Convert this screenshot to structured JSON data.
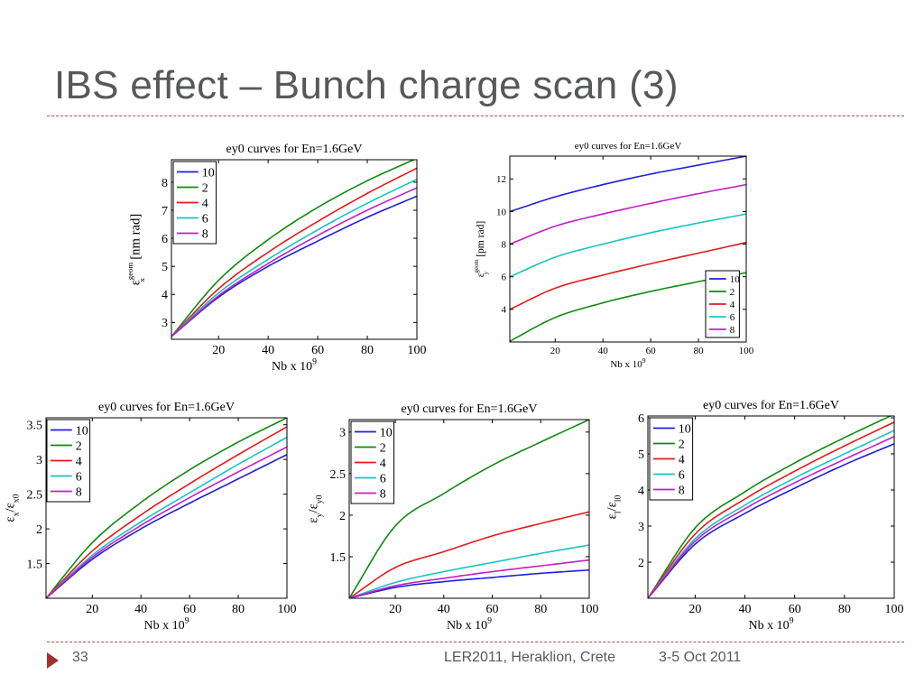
{
  "slide": {
    "title": "IBS effect – Bunch charge scan (3)",
    "page_number": "33",
    "event": "LER2011, Heraklion, Crete",
    "date": "3-5 Oct 2011"
  },
  "colors": {
    "series": [
      "#1f1fd6",
      "#0f8a0f",
      "#e31a1a",
      "#17c4c4",
      "#c21fc2"
    ],
    "accent": "#a3302b",
    "rule": "#b5514d",
    "title_text": "#57585a"
  },
  "chart_data": [
    {
      "type": "line",
      "title": "ey0 curves for En=1.6GeV",
      "xlabel": "Nb x 10",
      "xlabel_sup": "9",
      "ylabel": "ε",
      "ylabel_sub": "x",
      "ylabel_sup": "geom",
      "ylabel_unit": " [nm rad]",
      "xlim": [
        1,
        100
      ],
      "ylim": [
        2.4,
        8.8
      ],
      "xticks": [
        20,
        40,
        60,
        80,
        100
      ],
      "yticks": [
        3,
        4,
        5,
        6,
        7,
        8
      ],
      "grid": false,
      "legend": "top-left",
      "series": [
        {
          "name": "10",
          "x": [
            1,
            20,
            40,
            60,
            80,
            100
          ],
          "values": [
            2.5,
            3.9,
            5.0,
            5.9,
            6.75,
            7.5
          ]
        },
        {
          "name": "2",
          "x": [
            1,
            20,
            40,
            60,
            80,
            100
          ],
          "values": [
            2.5,
            4.5,
            5.95,
            7.1,
            8.05,
            8.85
          ]
        },
        {
          "name": "4",
          "x": [
            1,
            20,
            40,
            60,
            80,
            100
          ],
          "values": [
            2.5,
            4.2,
            5.5,
            6.6,
            7.6,
            8.5
          ]
        },
        {
          "name": "6",
          "x": [
            1,
            20,
            40,
            60,
            80,
            100
          ],
          "values": [
            2.5,
            4.05,
            5.25,
            6.3,
            7.25,
            8.1
          ]
        },
        {
          "name": "8",
          "x": [
            1,
            20,
            40,
            60,
            80,
            100
          ],
          "values": [
            2.5,
            3.95,
            5.1,
            6.1,
            7.0,
            7.8
          ]
        }
      ]
    },
    {
      "type": "line",
      "title": "ey0 curves for En=1.6GeV",
      "xlabel": "Nb x 10",
      "xlabel_sup": "9",
      "ylabel": "ε",
      "ylabel_sub": "y",
      "ylabel_sup": "geom",
      "ylabel_unit": " [pm rad]",
      "xlim": [
        1,
        100
      ],
      "ylim": [
        2,
        13.4
      ],
      "xticks": [
        20,
        40,
        60,
        80,
        100
      ],
      "yticks": [
        4,
        6,
        8,
        10,
        12
      ],
      "grid": false,
      "legend": "bottom-right",
      "series": [
        {
          "name": "10",
          "x": [
            1,
            20,
            40,
            60,
            80,
            100
          ],
          "values": [
            10.0,
            10.9,
            11.65,
            12.3,
            12.85,
            13.4
          ]
        },
        {
          "name": "2",
          "x": [
            1,
            20,
            40,
            60,
            80,
            100
          ],
          "values": [
            2.05,
            3.5,
            4.4,
            5.1,
            5.7,
            6.25
          ]
        },
        {
          "name": "4",
          "x": [
            1,
            20,
            40,
            60,
            80,
            100
          ],
          "values": [
            4.0,
            5.3,
            6.1,
            6.8,
            7.45,
            8.1
          ]
        },
        {
          "name": "6",
          "x": [
            1,
            20,
            40,
            60,
            80,
            100
          ],
          "values": [
            6.0,
            7.2,
            8.0,
            8.7,
            9.3,
            9.85
          ]
        },
        {
          "name": "8",
          "x": [
            1,
            20,
            40,
            60,
            80,
            100
          ],
          "values": [
            8.0,
            9.1,
            9.85,
            10.5,
            11.1,
            11.65
          ]
        }
      ]
    },
    {
      "type": "line",
      "title": "ey0 curves for En=1.6GeV",
      "xlabel": "Nb x 10",
      "xlabel_sup": "9",
      "ylabel": "ε",
      "ylabel_sub": "x",
      "ylabel_mid": "/ε",
      "ylabel_sub2": "x0",
      "xlim": [
        1,
        100
      ],
      "ylim": [
        1,
        3.6
      ],
      "xticks": [
        20,
        40,
        60,
        80,
        100
      ],
      "yticks": [
        1.5,
        2,
        2.5,
        3,
        3.5
      ],
      "ytick_labels": [
        "1.5",
        "2",
        "2.5",
        "3",
        "3.5"
      ],
      "grid": false,
      "legend": "top-left",
      "series": [
        {
          "name": "10",
          "x": [
            1,
            20,
            40,
            60,
            80,
            100
          ],
          "values": [
            1.0,
            1.56,
            2.0,
            2.37,
            2.72,
            3.07
          ]
        },
        {
          "name": "2",
          "x": [
            1,
            20,
            40,
            60,
            80,
            100
          ],
          "values": [
            1.0,
            1.8,
            2.38,
            2.85,
            3.25,
            3.6
          ]
        },
        {
          "name": "4",
          "x": [
            1,
            20,
            40,
            60,
            80,
            100
          ],
          "values": [
            1.0,
            1.68,
            2.2,
            2.65,
            3.07,
            3.47
          ]
        },
        {
          "name": "6",
          "x": [
            1,
            20,
            40,
            60,
            80,
            100
          ],
          "values": [
            1.0,
            1.62,
            2.1,
            2.52,
            2.93,
            3.32
          ]
        },
        {
          "name": "8",
          "x": [
            1,
            20,
            40,
            60,
            80,
            100
          ],
          "values": [
            1.0,
            1.59,
            2.05,
            2.45,
            2.82,
            3.18
          ]
        }
      ]
    },
    {
      "type": "line",
      "title": "ey0 curves for En=1.6GeV",
      "xlabel": "Nb x 10",
      "xlabel_sup": "9",
      "ylabel": "ε",
      "ylabel_sub": "y",
      "ylabel_mid": "/ε",
      "ylabel_sub2": "y0",
      "xlim": [
        1,
        100
      ],
      "ylim": [
        1,
        3.15
      ],
      "xticks": [
        20,
        40,
        60,
        80,
        100
      ],
      "yticks": [
        1.5,
        2,
        2.5,
        3
      ],
      "ytick_labels": [
        "1.5",
        "2",
        "2.5",
        "3"
      ],
      "grid": false,
      "legend": "top-left",
      "series": [
        {
          "name": "10",
          "x": [
            1,
            20,
            40,
            60,
            80,
            100
          ],
          "values": [
            1.0,
            1.13,
            1.2,
            1.25,
            1.3,
            1.34
          ]
        },
        {
          "name": "2",
          "x": [
            1,
            20,
            40,
            60,
            80,
            100
          ],
          "values": [
            1.0,
            1.87,
            2.26,
            2.6,
            2.88,
            3.15
          ]
        },
        {
          "name": "4",
          "x": [
            1,
            20,
            40,
            60,
            80,
            100
          ],
          "values": [
            1.0,
            1.37,
            1.56,
            1.75,
            1.9,
            2.04
          ]
        },
        {
          "name": "6",
          "x": [
            1,
            20,
            40,
            60,
            80,
            100
          ],
          "values": [
            1.0,
            1.19,
            1.32,
            1.43,
            1.54,
            1.64
          ]
        },
        {
          "name": "8",
          "x": [
            1,
            20,
            40,
            60,
            80,
            100
          ],
          "values": [
            1.0,
            1.15,
            1.24,
            1.32,
            1.39,
            1.46
          ]
        }
      ]
    },
    {
      "type": "line",
      "title": "ey0 curves for En=1.6GeV",
      "xlabel": "Nb x 10",
      "xlabel_sup": "9",
      "ylabel": "ε",
      "ylabel_sub": "l",
      "ylabel_mid": "/ε",
      "ylabel_sub2": "l0",
      "xlim": [
        1,
        100
      ],
      "ylim": [
        1,
        6.05
      ],
      "xticks": [
        20,
        40,
        60,
        80,
        100
      ],
      "yticks": [
        2,
        3,
        4,
        5,
        6
      ],
      "ytick_labels": [
        "2",
        "3",
        "4",
        "5",
        "6"
      ],
      "grid": false,
      "legend": "top-left",
      "series": [
        {
          "name": "10",
          "x": [
            1,
            20,
            40,
            60,
            80,
            100
          ],
          "values": [
            1.0,
            2.5,
            3.35,
            4.05,
            4.7,
            5.28
          ]
        },
        {
          "name": "2",
          "x": [
            1,
            20,
            40,
            60,
            80,
            100
          ],
          "values": [
            1.0,
            2.95,
            3.95,
            4.75,
            5.45,
            6.1
          ]
        },
        {
          "name": "4",
          "x": [
            1,
            20,
            40,
            60,
            80,
            100
          ],
          "values": [
            1.0,
            2.78,
            3.75,
            4.52,
            5.22,
            5.88
          ]
        },
        {
          "name": "6",
          "x": [
            1,
            20,
            40,
            60,
            80,
            100
          ],
          "values": [
            1.0,
            2.65,
            3.58,
            4.33,
            5.0,
            5.65
          ]
        },
        {
          "name": "8",
          "x": [
            1,
            20,
            40,
            60,
            80,
            100
          ],
          "values": [
            1.0,
            2.58,
            3.48,
            4.2,
            4.85,
            5.48
          ]
        }
      ]
    }
  ]
}
